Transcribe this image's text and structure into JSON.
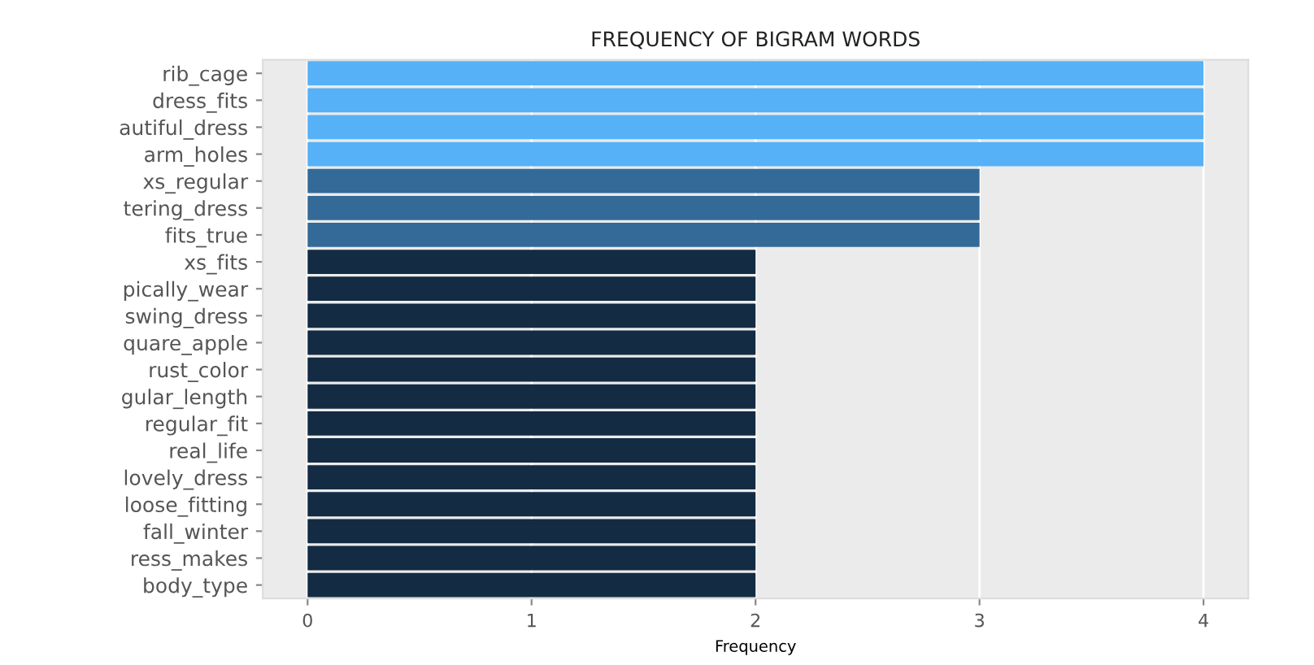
{
  "chart_data": {
    "type": "bar",
    "orientation": "horizontal",
    "title": "FREQUENCY OF BIGRAM WORDS",
    "xlabel": "Frequency",
    "categories": [
      "rib_cage",
      "dress_fits",
      "autiful_dress",
      "arm_holes",
      "xs_regular",
      "tering_dress",
      "fits_true",
      "xs_fits",
      "pically_wear",
      "swing_dress",
      "quare_apple",
      "rust_color",
      "gular_length",
      "regular_fit",
      "real_life",
      "lovely_dress",
      "loose_fitting",
      "fall_winter",
      "ress_makes",
      "body_type"
    ],
    "values": [
      4,
      4,
      4,
      4,
      3,
      3,
      3,
      2,
      2,
      2,
      2,
      2,
      2,
      2,
      2,
      2,
      2,
      2,
      2,
      2
    ],
    "colors": [
      "#56b1f7",
      "#56b1f7",
      "#56b1f7",
      "#56b1f7",
      "#336a98",
      "#336a98",
      "#336a98",
      "#132b43",
      "#132b43",
      "#132b43",
      "#132b43",
      "#132b43",
      "#132b43",
      "#132b43",
      "#132b43",
      "#132b43",
      "#132b43",
      "#132b43",
      "#132b43",
      "#132b43"
    ],
    "xlim": [
      -0.2,
      4.2
    ],
    "xticks": [
      0,
      1,
      2,
      3,
      4
    ],
    "grid": "x"
  }
}
